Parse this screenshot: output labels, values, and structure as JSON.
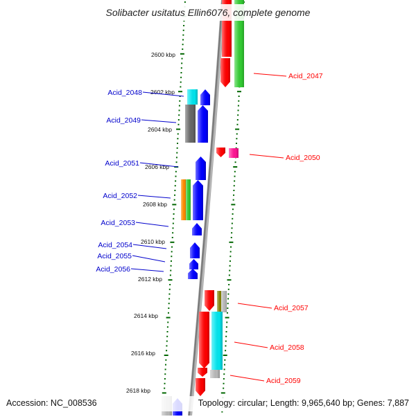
{
  "title": "Solibacter usitatus Ellin6076, complete genome",
  "footer": {
    "accession": "Accession: NC_008536",
    "summary": "Topology: circular; Length: 9,965,640 bp; Genes: 7,887"
  },
  "colors": {
    "forward_label": "#ff0000",
    "reverse_label": "#0000cc",
    "backbone": "#8a8a8a",
    "tick": "#006600",
    "gene_red": "#ff0000",
    "gene_blue": "#0000ff",
    "gene_green": "#33cc33",
    "gene_cyan": "#00e5ee",
    "gene_gray": "#b8b8b8",
    "gene_darkgray": "#666666",
    "gene_magenta": "#ff1493",
    "gene_orange": "#ff8c00",
    "gene_olive": "#808000"
  },
  "ticks": [
    "2600 kbp",
    "2602 kbp",
    "2604 kbp",
    "2606 kbp",
    "2608 kbp",
    "2610 kbp",
    "2612 kbp",
    "2614 kbp",
    "2616 kbp",
    "2618 kbp"
  ],
  "labels_forward": [
    "Acid_2047",
    "Acid_2050",
    "Acid_2057",
    "Acid_2058",
    "Acid_2059"
  ],
  "labels_reverse": [
    "Acid_2048",
    "Acid_2049",
    "Acid_2051",
    "Acid_2052",
    "Acid_2053",
    "Acid_2054",
    "Acid_2055",
    "Acid_2056"
  ]
}
